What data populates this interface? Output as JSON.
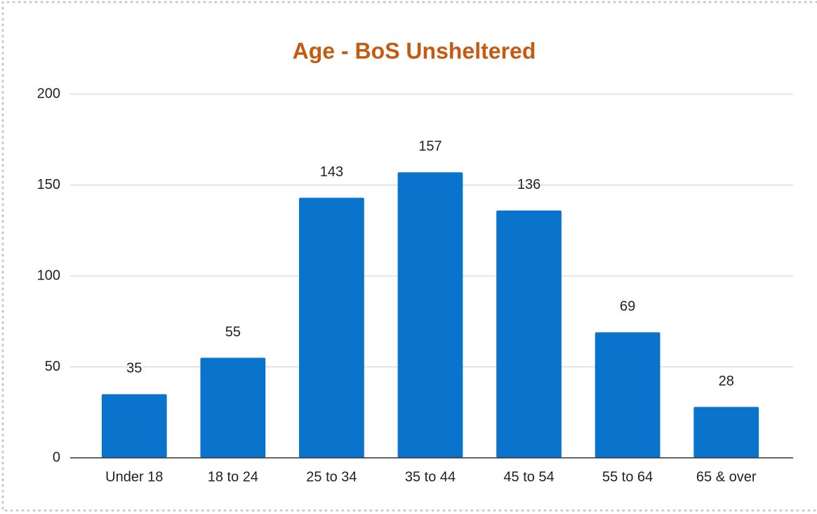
{
  "chart_data": {
    "type": "bar",
    "title": "Age - BoS Unsheltered",
    "categories": [
      "Under 18",
      "18 to 24",
      "25 to 34",
      "35 to 44",
      "45 to 54",
      "55 to 64",
      "65 & over"
    ],
    "values": [
      35,
      55,
      143,
      157,
      136,
      69,
      28
    ],
    "color": "#0a74cc",
    "ylim": [
      0,
      200
    ],
    "yticks": [
      0,
      50,
      100,
      150,
      200
    ],
    "grid": true
  }
}
